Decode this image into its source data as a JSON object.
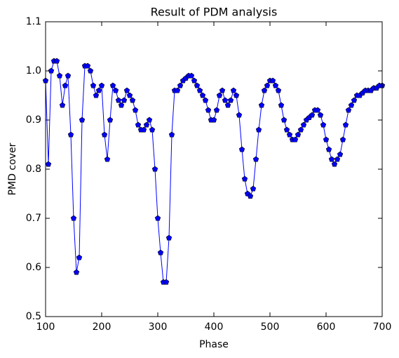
{
  "chart_data": {
    "type": "line",
    "title": "Result of PDM analysis",
    "x_label": "Phase",
    "y_label": "PMD cover",
    "x": [
      100,
      105,
      110,
      115,
      120,
      125,
      130,
      135,
      140,
      145,
      150,
      155,
      160,
      165,
      170,
      175,
      180,
      185,
      190,
      195,
      200,
      205,
      210,
      215,
      220,
      225,
      230,
      235,
      240,
      245,
      250,
      255,
      260,
      265,
      270,
      275,
      280,
      285,
      290,
      295,
      300,
      305,
      310,
      315,
      320,
      325,
      330,
      335,
      340,
      345,
      350,
      355,
      360,
      365,
      370,
      375,
      380,
      385,
      390,
      395,
      400,
      405,
      410,
      415,
      420,
      425,
      430,
      435,
      440,
      445,
      450,
      455,
      460,
      465,
      470,
      475,
      480,
      485,
      490,
      495,
      500,
      505,
      510,
      515,
      520,
      525,
      530,
      535,
      540,
      545,
      550,
      555,
      560,
      565,
      570,
      575,
      580,
      585,
      590,
      595,
      600,
      605,
      610,
      615,
      620,
      625,
      630,
      635,
      640,
      645,
      650,
      655,
      660,
      665,
      670,
      675,
      680,
      685,
      690,
      695,
      700
    ],
    "series": [
      {
        "color": "#0000ff",
        "marker": "pentagon",
        "values": [
          0.98,
          0.81,
          1.0,
          1.02,
          1.02,
          0.99,
          0.93,
          0.97,
          0.99,
          0.87,
          0.7,
          0.59,
          0.62,
          0.9,
          1.01,
          1.01,
          1.0,
          0.97,
          0.95,
          0.96,
          0.97,
          0.87,
          0.82,
          0.9,
          0.97,
          0.96,
          0.94,
          0.93,
          0.94,
          0.96,
          0.95,
          0.94,
          0.92,
          0.89,
          0.88,
          0.88,
          0.89,
          0.9,
          0.88,
          0.8,
          0.7,
          0.63,
          0.57,
          0.57,
          0.66,
          0.87,
          0.96,
          0.96,
          0.97,
          0.98,
          0.985,
          0.99,
          0.99,
          0.98,
          0.97,
          0.96,
          0.95,
          0.94,
          0.92,
          0.9,
          0.9,
          0.92,
          0.95,
          0.96,
          0.94,
          0.93,
          0.94,
          0.96,
          0.95,
          0.91,
          0.84,
          0.78,
          0.75,
          0.745,
          0.76,
          0.82,
          0.88,
          0.93,
          0.96,
          0.97,
          0.98,
          0.98,
          0.97,
          0.96,
          0.93,
          0.9,
          0.88,
          0.87,
          0.86,
          0.86,
          0.87,
          0.88,
          0.89,
          0.9,
          0.905,
          0.91,
          0.92,
          0.92,
          0.91,
          0.89,
          0.86,
          0.84,
          0.82,
          0.81,
          0.82,
          0.83,
          0.86,
          0.89,
          0.92,
          0.93,
          0.94,
          0.95,
          0.95,
          0.955,
          0.96,
          0.96,
          0.96,
          0.965,
          0.965,
          0.97,
          0.97
        ]
      }
    ],
    "xlim": [
      100,
      700
    ],
    "ylim": [
      0.5,
      1.1
    ],
    "xticks": [
      100,
      200,
      300,
      400,
      500,
      600,
      700
    ],
    "yticks": [
      0.5,
      0.6,
      0.7,
      0.8,
      0.9,
      {
        "value": 1,
        "label": "1.0"
      },
      1.1
    ],
    "grid": false
  }
}
